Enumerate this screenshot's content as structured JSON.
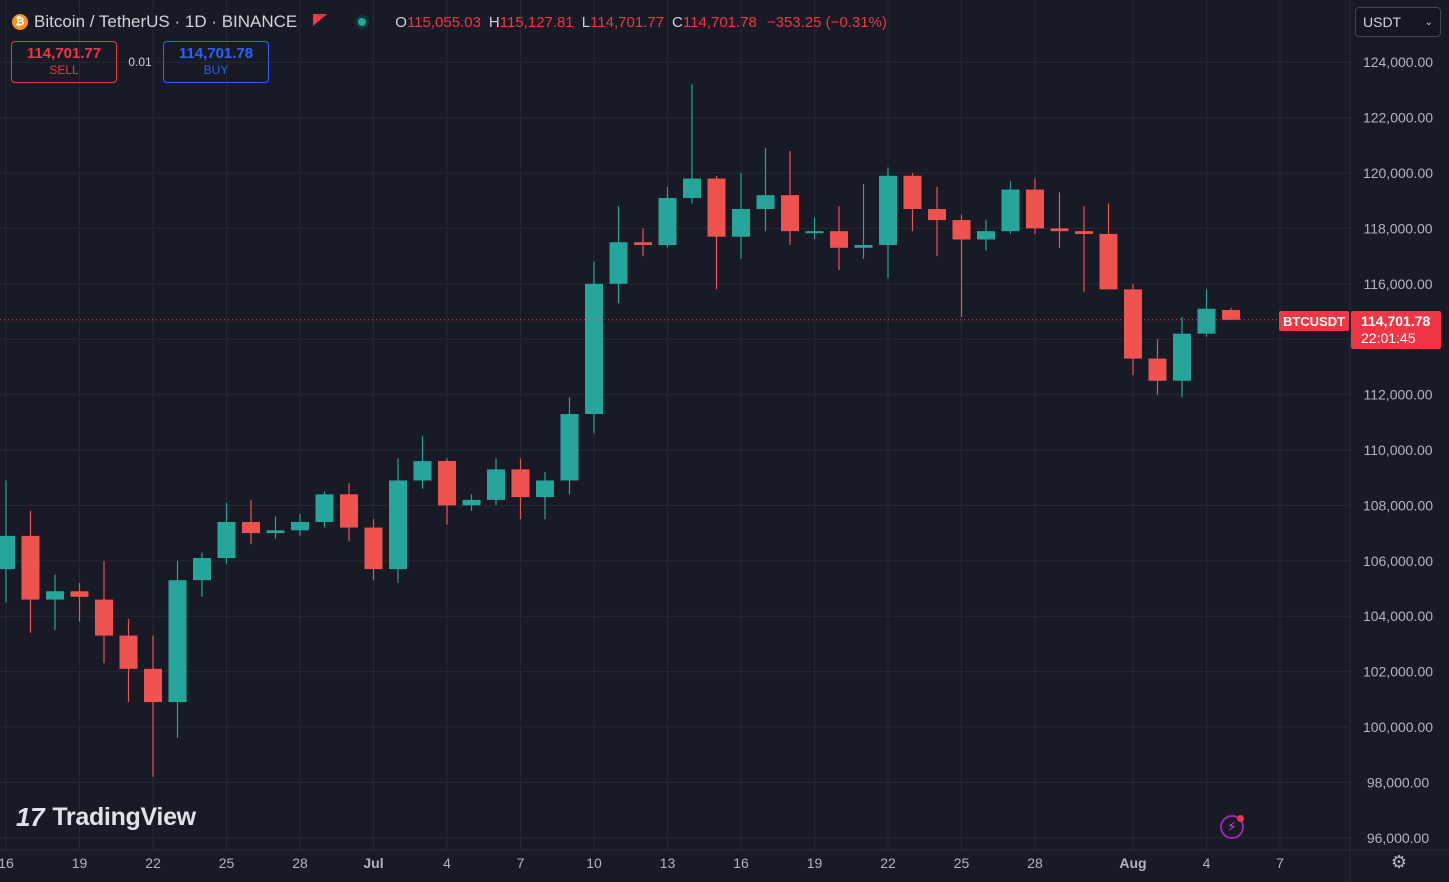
{
  "legend": {
    "coin_glyph": "₿",
    "symbol": "Bitcoin / TetherUS · 1D · BINANCE",
    "open_label": "O",
    "open": "115,055.03",
    "high_label": "H",
    "high": "115,127.81",
    "low_label": "L",
    "low": "114,701.77",
    "close_label": "C",
    "close": "114,701.78",
    "change": "−353.25 (−0.31%)"
  },
  "trade": {
    "sell_price": "114,701.77",
    "sell_label": "SELL",
    "quantity": "0.01",
    "buy_price": "114,701.78",
    "buy_label": "BUY"
  },
  "currency": {
    "value": "USDT",
    "chevron": "⌄"
  },
  "logo": {
    "mark": "17",
    "text": "TradingView"
  },
  "price_tag": {
    "symbol": "BTCUSDT",
    "price": "114,701.78",
    "countdown": "22:01:45"
  },
  "icons": {
    "flash": "⚡",
    "settings": "⚙"
  },
  "colors": {
    "up": "#26a69a",
    "down": "#ef5350",
    "background": "#181a25",
    "grid": "#262933"
  },
  "chart_data": {
    "type": "candlestick",
    "title": "",
    "xlabel": "",
    "ylabel": "",
    "ylim": [
      95500,
      125000
    ],
    "grid": true,
    "y_ticks": [
      "124,000.00",
      "122,000.00",
      "120,000.00",
      "118,000.00",
      "116,000.00",
      "114,000.00",
      "112,000.00",
      "110,000.00",
      "108,000.00",
      "106,000.00",
      "104,000.00",
      "102,000.00",
      "100,000.00",
      "98,000.00",
      "96,000.00"
    ],
    "x_ticks": [
      {
        "label": "16",
        "date": "2025-06-16"
      },
      {
        "label": "19",
        "date": "2025-06-19"
      },
      {
        "label": "22",
        "date": "2025-06-22"
      },
      {
        "label": "25",
        "date": "2025-06-25"
      },
      {
        "label": "28",
        "date": "2025-06-28"
      },
      {
        "label": "Jul",
        "date": "2025-07-01"
      },
      {
        "label": "4",
        "date": "2025-07-04"
      },
      {
        "label": "7",
        "date": "2025-07-07"
      },
      {
        "label": "10",
        "date": "2025-07-10"
      },
      {
        "label": "13",
        "date": "2025-07-13"
      },
      {
        "label": "16",
        "date": "2025-07-16"
      },
      {
        "label": "19",
        "date": "2025-07-19"
      },
      {
        "label": "22",
        "date": "2025-07-22"
      },
      {
        "label": "25",
        "date": "2025-07-25"
      },
      {
        "label": "28",
        "date": "2025-07-28"
      },
      {
        "label": "Aug",
        "date": "2025-08-01"
      },
      {
        "label": "4",
        "date": "2025-08-04"
      },
      {
        "label": "7",
        "date": "2025-08-07"
      }
    ],
    "last_price": 114701.78,
    "candles": [
      {
        "date": "2025-06-16",
        "o": 105700,
        "h": 108900,
        "l": 104500,
        "c": 106900
      },
      {
        "date": "2025-06-17",
        "o": 106900,
        "h": 107800,
        "l": 103400,
        "c": 104600
      },
      {
        "date": "2025-06-18",
        "o": 104600,
        "h": 105500,
        "l": 103500,
        "c": 104900
      },
      {
        "date": "2025-06-19",
        "o": 104900,
        "h": 105200,
        "l": 103800,
        "c": 104700
      },
      {
        "date": "2025-06-20",
        "o": 104600,
        "h": 106000,
        "l": 102300,
        "c": 103300
      },
      {
        "date": "2025-06-21",
        "o": 103300,
        "h": 103900,
        "l": 100900,
        "c": 102100
      },
      {
        "date": "2025-06-22",
        "o": 102100,
        "h": 103300,
        "l": 98200,
        "c": 100900
      },
      {
        "date": "2025-06-23",
        "o": 100900,
        "h": 106000,
        "l": 99600,
        "c": 105300
      },
      {
        "date": "2025-06-24",
        "o": 105300,
        "h": 106300,
        "l": 104700,
        "c": 106100
      },
      {
        "date": "2025-06-25",
        "o": 106100,
        "h": 108100,
        "l": 105900,
        "c": 107400
      },
      {
        "date": "2025-06-26",
        "o": 107400,
        "h": 108200,
        "l": 106600,
        "c": 107000
      },
      {
        "date": "2025-06-27",
        "o": 107000,
        "h": 107600,
        "l": 106800,
        "c": 107100
      },
      {
        "date": "2025-06-28",
        "o": 107100,
        "h": 107700,
        "l": 106900,
        "c": 107400
      },
      {
        "date": "2025-06-29",
        "o": 107400,
        "h": 108500,
        "l": 107200,
        "c": 108400
      },
      {
        "date": "2025-06-30",
        "o": 108400,
        "h": 108800,
        "l": 106700,
        "c": 107200
      },
      {
        "date": "2025-07-01",
        "o": 107200,
        "h": 107500,
        "l": 105300,
        "c": 105700
      },
      {
        "date": "2025-07-02",
        "o": 105700,
        "h": 109700,
        "l": 105200,
        "c": 108900
      },
      {
        "date": "2025-07-03",
        "o": 108900,
        "h": 110500,
        "l": 108600,
        "c": 109600
      },
      {
        "date": "2025-07-04",
        "o": 109600,
        "h": 109700,
        "l": 107300,
        "c": 108000
      },
      {
        "date": "2025-07-05",
        "o": 108000,
        "h": 108400,
        "l": 107800,
        "c": 108200
      },
      {
        "date": "2025-07-06",
        "o": 108200,
        "h": 109700,
        "l": 108000,
        "c": 109300
      },
      {
        "date": "2025-07-07",
        "o": 109300,
        "h": 109700,
        "l": 107500,
        "c": 108300
      },
      {
        "date": "2025-07-08",
        "o": 108300,
        "h": 109200,
        "l": 107500,
        "c": 108900
      },
      {
        "date": "2025-07-09",
        "o": 108900,
        "h": 111900,
        "l": 108400,
        "c": 111300
      },
      {
        "date": "2025-07-10",
        "o": 111300,
        "h": 116800,
        "l": 110600,
        "c": 116000
      },
      {
        "date": "2025-07-11",
        "o": 116000,
        "h": 118800,
        "l": 115300,
        "c": 117500
      },
      {
        "date": "2025-07-12",
        "o": 117500,
        "h": 118000,
        "l": 117000,
        "c": 117400
      },
      {
        "date": "2025-07-13",
        "o": 117400,
        "h": 119500,
        "l": 117300,
        "c": 119100
      },
      {
        "date": "2025-07-14",
        "o": 119100,
        "h": 123200,
        "l": 118900,
        "c": 119800
      },
      {
        "date": "2025-07-15",
        "o": 119800,
        "h": 119900,
        "l": 115800,
        "c": 117700
      },
      {
        "date": "2025-07-16",
        "o": 117700,
        "h": 120000,
        "l": 116900,
        "c": 118700
      },
      {
        "date": "2025-07-17",
        "o": 118700,
        "h": 120900,
        "l": 117900,
        "c": 119200
      },
      {
        "date": "2025-07-18",
        "o": 119200,
        "h": 120800,
        "l": 117400,
        "c": 117900
      },
      {
        "date": "2025-07-19",
        "o": 117900,
        "h": 118400,
        "l": 117600,
        "c": 117900
      },
      {
        "date": "2025-07-20",
        "o": 117900,
        "h": 118800,
        "l": 116500,
        "c": 117300
      },
      {
        "date": "2025-07-21",
        "o": 117300,
        "h": 119600,
        "l": 116900,
        "c": 117400
      },
      {
        "date": "2025-07-22",
        "o": 117400,
        "h": 120200,
        "l": 116200,
        "c": 119900
      },
      {
        "date": "2025-07-23",
        "o": 119900,
        "h": 120000,
        "l": 117900,
        "c": 118700
      },
      {
        "date": "2025-07-24",
        "o": 118700,
        "h": 119500,
        "l": 117000,
        "c": 118300
      },
      {
        "date": "2025-07-25",
        "o": 118300,
        "h": 118500,
        "l": 114800,
        "c": 117600
      },
      {
        "date": "2025-07-26",
        "o": 117600,
        "h": 118300,
        "l": 117200,
        "c": 117900
      },
      {
        "date": "2025-07-27",
        "o": 117900,
        "h": 119700,
        "l": 117800,
        "c": 119400
      },
      {
        "date": "2025-07-28",
        "o": 119400,
        "h": 119800,
        "l": 117800,
        "c": 118000
      },
      {
        "date": "2025-07-29",
        "o": 118000,
        "h": 119300,
        "l": 117300,
        "c": 117900
      },
      {
        "date": "2025-07-30",
        "o": 117900,
        "h": 118800,
        "l": 115700,
        "c": 117800
      },
      {
        "date": "2025-07-31",
        "o": 117800,
        "h": 118900,
        "l": 115800,
        "c": 115800
      },
      {
        "date": "2025-08-01",
        "o": 115800,
        "h": 116000,
        "l": 112700,
        "c": 113300
      },
      {
        "date": "2025-08-02",
        "o": 113300,
        "h": 114000,
        "l": 112000,
        "c": 112500
      },
      {
        "date": "2025-08-03",
        "o": 112500,
        "h": 114800,
        "l": 111900,
        "c": 114200
      },
      {
        "date": "2025-08-04",
        "o": 114200,
        "h": 115800,
        "l": 114100,
        "c": 115100
      },
      {
        "date": "2025-08-05",
        "o": 115055.03,
        "h": 115127.81,
        "l": 114701.77,
        "c": 114701.78
      }
    ]
  }
}
